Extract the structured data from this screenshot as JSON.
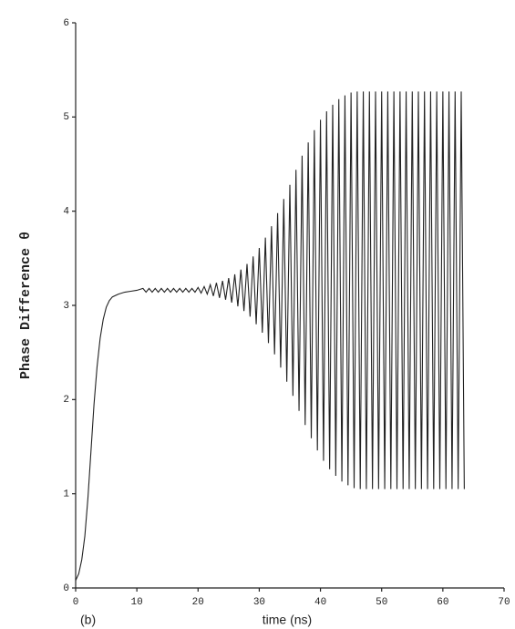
{
  "chart_data": {
    "type": "line",
    "y_label": "Phase Difference θ",
    "x_label": "time (ns)",
    "annotation": "(b)",
    "xlim": [
      0,
      70
    ],
    "ylim": [
      0,
      6
    ],
    "xticks": [
      0,
      10,
      20,
      30,
      40,
      50,
      60,
      70
    ],
    "yticks": [
      0,
      1,
      2,
      3,
      4,
      5,
      6
    ],
    "grid": false,
    "color": "#222222",
    "x": [
      0,
      0.5,
      1,
      1.5,
      2,
      2.5,
      3,
      3.5,
      4,
      4.5,
      5,
      5.5,
      6,
      7,
      8,
      9,
      10,
      11,
      11.5,
      12,
      12.5,
      13,
      13.5,
      14,
      14.5,
      15,
      15.5,
      16,
      16.5,
      17,
      17.5,
      18,
      18.5,
      19,
      19.5,
      20,
      20.5,
      21,
      21.5,
      22,
      22.5,
      23,
      23.5,
      24,
      24.5,
      25,
      25.5,
      26,
      26.5,
      27,
      27.5,
      28,
      28.5,
      29,
      29.5,
      30,
      30.5,
      31,
      31.5,
      32,
      32.5,
      33,
      33.5,
      34,
      34.5,
      35,
      35.5,
      36,
      36.5,
      37,
      37.5,
      38,
      38.5,
      39,
      39.5,
      40,
      40.5,
      41,
      41.5,
      42,
      42.5,
      43,
      43.5,
      44,
      44.5,
      45,
      45.5,
      46,
      46.5,
      47,
      47.5,
      48,
      48.5,
      49,
      49.5,
      50,
      50.5,
      51,
      51.5,
      52,
      52.5,
      53,
      53.5,
      54,
      54.5,
      55,
      55.5,
      56,
      56.5,
      57,
      57.5,
      58,
      58.5,
      59,
      59.5,
      60,
      60.5,
      61,
      61.5,
      62,
      62.5,
      63,
      63.5
    ],
    "values": [
      0.08,
      0.15,
      0.3,
      0.55,
      0.95,
      1.45,
      1.95,
      2.35,
      2.65,
      2.85,
      2.98,
      3.05,
      3.09,
      3.12,
      3.14,
      3.15,
      3.16,
      3.18,
      3.14,
      3.18,
      3.14,
      3.18,
      3.14,
      3.18,
      3.14,
      3.18,
      3.14,
      3.18,
      3.14,
      3.18,
      3.14,
      3.18,
      3.14,
      3.18,
      3.14,
      3.19,
      3.13,
      3.2,
      3.12,
      3.22,
      3.1,
      3.24,
      3.08,
      3.26,
      3.06,
      3.29,
      3.03,
      3.33,
      2.99,
      3.38,
      2.94,
      3.44,
      2.88,
      3.52,
      2.8,
      3.61,
      2.71,
      3.72,
      2.6,
      3.84,
      2.48,
      3.98,
      2.34,
      4.13,
      2.19,
      4.28,
      2.04,
      4.44,
      1.88,
      4.59,
      1.73,
      4.73,
      1.59,
      4.86,
      1.46,
      4.97,
      1.35,
      5.06,
      1.26,
      5.13,
      1.19,
      5.19,
      1.13,
      5.23,
      1.09,
      5.26,
      1.06,
      5.27,
      1.05,
      5.27,
      1.05,
      5.27,
      1.05,
      5.27,
      1.05,
      5.27,
      1.05,
      5.27,
      1.05,
      5.27,
      1.05,
      5.27,
      1.05,
      5.27,
      1.05,
      5.27,
      1.05,
      5.27,
      1.05,
      5.27,
      1.05,
      5.27,
      1.05,
      5.27,
      1.05,
      5.27,
      1.05,
      5.27,
      1.05,
      5.27,
      1.05,
      5.27,
      1.05
    ]
  }
}
